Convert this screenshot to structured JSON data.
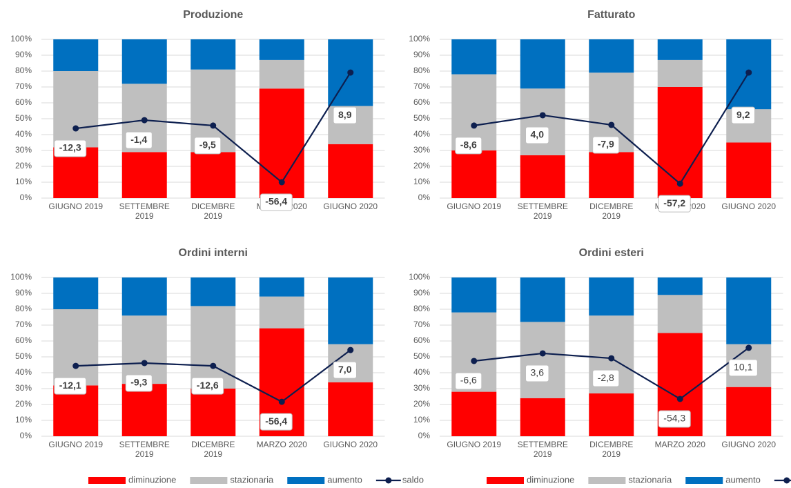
{
  "chart_data": [
    {
      "type": "bar",
      "stacked": true,
      "title": "Produzione",
      "categories": [
        "GIUGNO 2019",
        "SETTEMBRE 2019",
        "DICEMBRE 2019",
        "MARZO 2020",
        "GIUGNO 2020"
      ],
      "ylim": [
        0,
        100
      ],
      "yticks": [
        {
          "value": 0,
          "label": "0%"
        },
        {
          "value": 10,
          "label": "10%"
        },
        {
          "value": 20,
          "label": "20%"
        },
        {
          "value": 30,
          "label": "30%"
        },
        {
          "value": 40,
          "label": "40%"
        },
        {
          "value": 50,
          "label": "50%"
        },
        {
          "value": 60,
          "label": "60%"
        },
        {
          "value": 70,
          "label": "70%"
        },
        {
          "value": 80,
          "label": "80%"
        },
        {
          "value": 90,
          "label": "90%"
        },
        {
          "value": 100,
          "label": "100%"
        }
      ],
      "grid": true,
      "legend": false,
      "series": [
        {
          "name": "diminuzione",
          "color": "#ff0000",
          "values": [
            32,
            29,
            29,
            69,
            34
          ]
        },
        {
          "name": "stazionaria",
          "color": "#bfbfbf",
          "values": [
            48,
            43,
            52,
            18,
            24
          ]
        },
        {
          "name": "aumento",
          "color": "#0070c0",
          "values": [
            20,
            28,
            19,
            13,
            42
          ]
        },
        {
          "name": "saldo",
          "type": "line",
          "color": "#0d1f4f",
          "values": [
            43.9,
            49.1,
            45.7,
            10,
            79.1
          ],
          "point_labels": [
            "-12,3",
            "-1,4",
            "-9,5",
            "-56,4",
            "8,9"
          ],
          "label_bold": true
        }
      ]
    },
    {
      "type": "bar",
      "stacked": true,
      "title": "Fatturato",
      "categories": [
        "GIUGNO 2019",
        "SETTEMBRE 2019",
        "DICEMBRE 2019",
        "MARZO 2020",
        "GIUGNO 2020"
      ],
      "ylim": [
        0,
        100
      ],
      "yticks": [
        {
          "value": 0,
          "label": "0%"
        },
        {
          "value": 10,
          "label": "10%"
        },
        {
          "value": 20,
          "label": "20%"
        },
        {
          "value": 30,
          "label": "30%"
        },
        {
          "value": 40,
          "label": "40%"
        },
        {
          "value": 50,
          "label": "50%"
        },
        {
          "value": 60,
          "label": "60%"
        },
        {
          "value": 70,
          "label": "70%"
        },
        {
          "value": 80,
          "label": "80%"
        },
        {
          "value": 90,
          "label": "90%"
        },
        {
          "value": 100,
          "label": "100%"
        }
      ],
      "grid": true,
      "legend": false,
      "series": [
        {
          "name": "diminuzione",
          "color": "#ff0000",
          "values": [
            30,
            27,
            29,
            70,
            35
          ]
        },
        {
          "name": "stazionaria",
          "color": "#bfbfbf",
          "values": [
            48,
            42,
            50,
            17,
            21
          ]
        },
        {
          "name": "aumento",
          "color": "#0070c0",
          "values": [
            22,
            31,
            21,
            13,
            44
          ]
        },
        {
          "name": "saldo",
          "type": "line",
          "color": "#0d1f4f",
          "values": [
            45.7,
            52.2,
            46.1,
            9.1,
            79.1
          ],
          "point_labels": [
            "-8,6",
            "4,0",
            "-7,9",
            "-57,2",
            "9,2"
          ],
          "label_bold": true
        }
      ]
    },
    {
      "type": "bar",
      "stacked": true,
      "title": "Ordini interni",
      "categories": [
        "GIUGNO 2019",
        "SETTEMBRE 2019",
        "DICEMBRE 2019",
        "MARZO 2020",
        "GIUGNO 2020"
      ],
      "ylim": [
        0,
        100
      ],
      "yticks": [
        {
          "value": 0,
          "label": "0%"
        },
        {
          "value": 10,
          "label": "10%"
        },
        {
          "value": 20,
          "label": "20%"
        },
        {
          "value": 30,
          "label": "30%"
        },
        {
          "value": 40,
          "label": "40%"
        },
        {
          "value": 50,
          "label": "50%"
        },
        {
          "value": 60,
          "label": "60%"
        },
        {
          "value": 70,
          "label": "70%"
        },
        {
          "value": 80,
          "label": "80%"
        },
        {
          "value": 90,
          "label": "90%"
        },
        {
          "value": 100,
          "label": "100%"
        }
      ],
      "grid": true,
      "legend": true,
      "series": [
        {
          "name": "diminuzione",
          "color": "#ff0000",
          "values": [
            32,
            33,
            30,
            68,
            34
          ]
        },
        {
          "name": "stazionaria",
          "color": "#bfbfbf",
          "values": [
            48,
            43,
            52,
            20,
            24
          ]
        },
        {
          "name": "aumento",
          "color": "#0070c0",
          "values": [
            20,
            24,
            18,
            12,
            42
          ]
        },
        {
          "name": "saldo",
          "type": "line",
          "color": "#0d1f4f",
          "values": [
            44.3,
            46.1,
            44.3,
            21.7,
            54.3
          ],
          "point_labels": [
            "-12,1",
            "-9,3",
            "-12,6",
            "-56,4",
            "7,0"
          ],
          "label_bold": true
        }
      ]
    },
    {
      "type": "bar",
      "stacked": true,
      "title": "Ordini esteri",
      "categories": [
        "GIUGNO 2019",
        "SETTEMBRE 2019",
        "DICEMBRE 2019",
        "MARZO 2020",
        "GIUGNO 2020"
      ],
      "ylim": [
        0,
        100
      ],
      "yticks": [
        {
          "value": 0,
          "label": "0%"
        },
        {
          "value": 10,
          "label": "10%"
        },
        {
          "value": 20,
          "label": "20%"
        },
        {
          "value": 30,
          "label": "30%"
        },
        {
          "value": 40,
          "label": "40%"
        },
        {
          "value": 50,
          "label": "50%"
        },
        {
          "value": 60,
          "label": "60%"
        },
        {
          "value": 70,
          "label": "70%"
        },
        {
          "value": 80,
          "label": "80%"
        },
        {
          "value": 90,
          "label": "90%"
        },
        {
          "value": 100,
          "label": "100%"
        }
      ],
      "grid": true,
      "legend": true,
      "series": [
        {
          "name": "diminuzione",
          "color": "#ff0000",
          "values": [
            28,
            24,
            27,
            65,
            31
          ]
        },
        {
          "name": "stazionaria",
          "color": "#bfbfbf",
          "values": [
            50,
            48,
            49,
            24,
            27
          ]
        },
        {
          "name": "aumento",
          "color": "#0070c0",
          "values": [
            22,
            28,
            24,
            11,
            42
          ]
        },
        {
          "name": "saldo",
          "type": "line",
          "color": "#0d1f4f",
          "values": [
            47.4,
            52.2,
            49.1,
            23.5,
            55.7
          ],
          "point_labels": [
            "-6,6",
            "3,6",
            "-2,8",
            "-54,3",
            "10,1"
          ],
          "label_bold": false
        }
      ]
    }
  ]
}
